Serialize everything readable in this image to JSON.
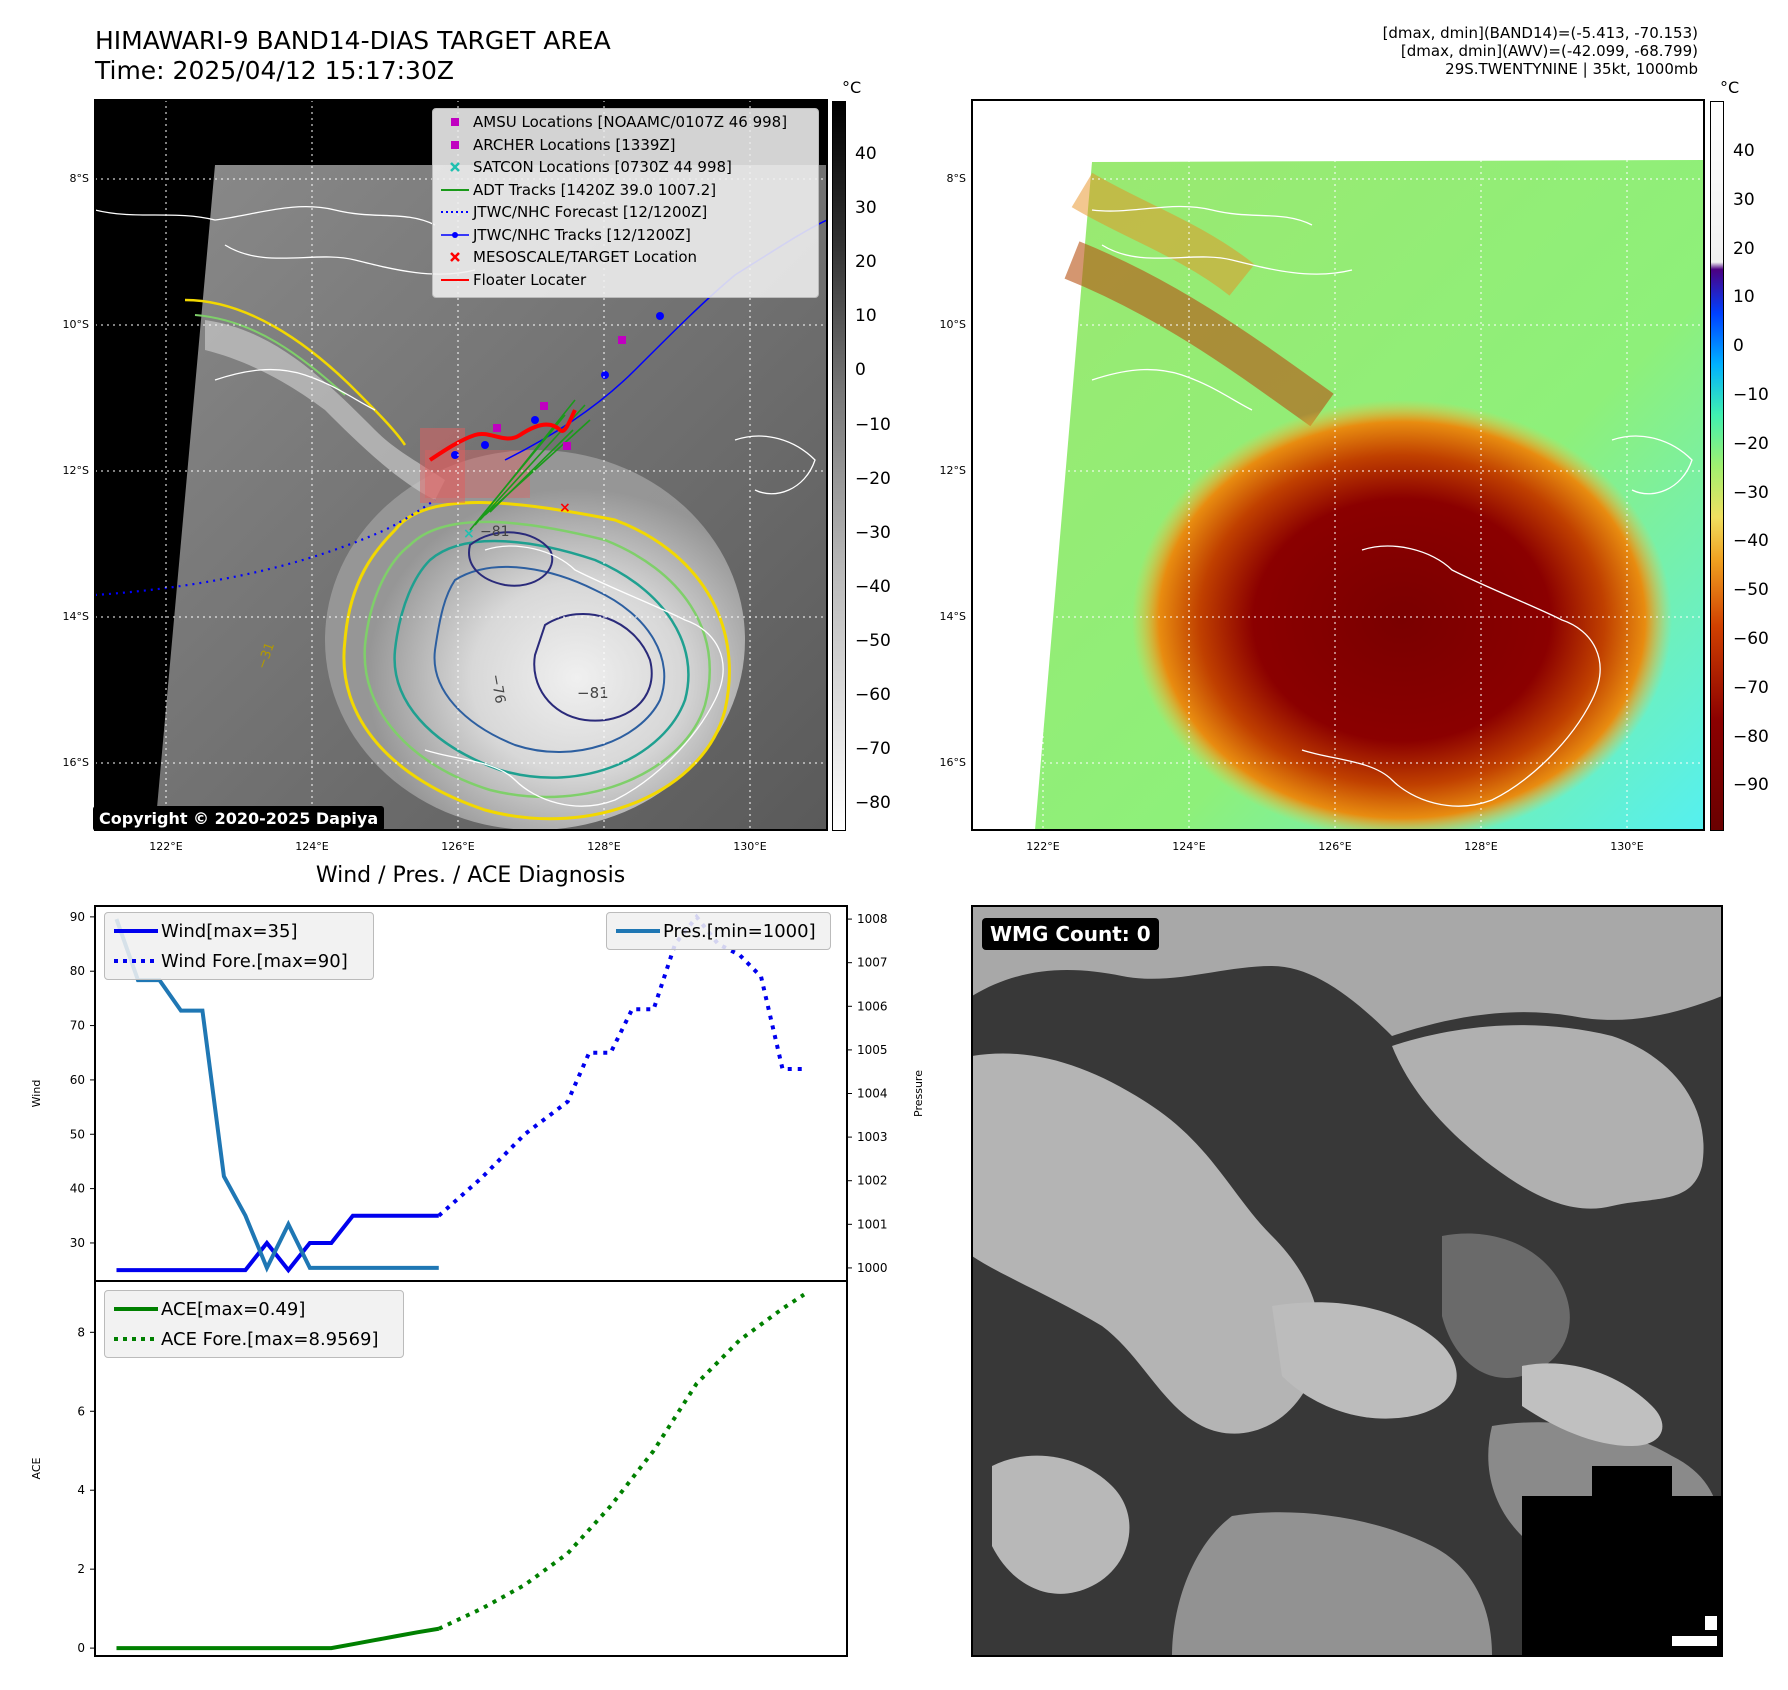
{
  "header": {
    "title_line1": "HIMAWARI-9 BAND14-DIAS TARGET AREA",
    "title_line2": "Time: 2025/04/12 15:17:30Z",
    "info_line1": "[dmax, dmin](BAND14)=(-5.413, -70.153)",
    "info_line2": "[dmax, dmin](AWV)=(-42.099, -68.799)",
    "info_line3": "29S.TWENTYNINE | 35kt, 1000mb"
  },
  "map_axes": {
    "lat_labels": [
      "8°S",
      "10°S",
      "12°S",
      "14°S",
      "16°S"
    ],
    "lon_labels": [
      "122°E",
      "124°E",
      "126°E",
      "128°E",
      "130°E"
    ]
  },
  "colorbar_left": {
    "unit": "°C",
    "ticks": [
      "40",
      "30",
      "20",
      "10",
      "0",
      "−10",
      "−20",
      "−30",
      "−40",
      "−50",
      "−60",
      "−70",
      "−80"
    ]
  },
  "colorbar_right": {
    "unit": "°C",
    "ticks": [
      "40",
      "30",
      "20",
      "10",
      "0",
      "−10",
      "−20",
      "−30",
      "−40",
      "−50",
      "−60",
      "−70",
      "−80",
      "−90"
    ]
  },
  "map_legend": [
    {
      "label": "AMSU Locations [NOAAMC/0107Z 46 998]",
      "marker": "square",
      "color": "#c000c0"
    },
    {
      "label": "ARCHER Locations [1339Z]",
      "marker": "square",
      "color": "#c000c0"
    },
    {
      "label": "SATCON Locations [0730Z 44 998]",
      "marker": "x",
      "color": "#20c0b0"
    },
    {
      "label": "ADT Tracks [1420Z 39.0 1007.2]",
      "marker": "line",
      "color": "#1a9a1a"
    },
    {
      "label": "JTWC/NHC Forecast [12/1200Z]",
      "marker": "dotted",
      "color": "#0000ff"
    },
    {
      "label": "JTWC/NHC Tracks [12/1200Z]",
      "marker": "line-dot",
      "color": "#0000ff"
    },
    {
      "label": "MESOSCALE/TARGET Location",
      "marker": "x",
      "color": "#ff0000"
    },
    {
      "label": "Floater Locater",
      "marker": "line",
      "color": "#ff0000"
    }
  ],
  "contour_labels": [
    "−81",
    "−76",
    "−81",
    "−31"
  ],
  "copyright": "Copyright © 2020-2025 Dapiya",
  "diag_title": "Wind / Pres. / ACE Diagnosis",
  "wmg_label": "WMG Count: 0",
  "chart_data": [
    {
      "type": "line",
      "name": "wind_pressure",
      "ylabel": "Wind",
      "y2label": "Pressure",
      "ylim": [
        23,
        92
      ],
      "y2lim": [
        999.7,
        1008.3
      ],
      "yticks": [
        30,
        40,
        50,
        60,
        70,
        80,
        90
      ],
      "y2ticks": [
        1000,
        1001,
        1002,
        1003,
        1004,
        1005,
        1006,
        1007,
        1008
      ],
      "xlim": [
        0,
        35
      ],
      "legend_left": [
        "Wind[max=35]",
        "Wind Fore.[max=90]"
      ],
      "legend_right": [
        "Pres.[min=1000]"
      ],
      "series": [
        {
          "name": "Wind[max=35]",
          "axis": "left",
          "style": "solid",
          "color": "#0000ee",
          "x": [
            1,
            2,
            3,
            4,
            5,
            6,
            7,
            8,
            9,
            10,
            11,
            12,
            13,
            14,
            15,
            16
          ],
          "y": [
            25,
            25,
            25,
            25,
            25,
            25,
            25,
            30,
            25,
            30,
            30,
            35,
            35,
            35,
            35,
            35
          ]
        },
        {
          "name": "Wind Fore.[max=90]",
          "axis": "left",
          "style": "dotted",
          "color": "#0000ee",
          "x": [
            16,
            18,
            20,
            22,
            23,
            24,
            25,
            26,
            27,
            28,
            29,
            30,
            31,
            32,
            33
          ],
          "y": [
            35,
            42,
            50,
            56,
            65,
            65,
            73,
            73,
            85,
            90,
            85,
            83,
            79,
            62,
            62
          ]
        },
        {
          "name": "Pres.[min=1000]",
          "axis": "right",
          "style": "solid",
          "color": "#1f77b4",
          "x": [
            1,
            2,
            3,
            4,
            5,
            6,
            7,
            8,
            9,
            10,
            11,
            12,
            13,
            14,
            15,
            16
          ],
          "y": [
            1008,
            1006.6,
            1006.6,
            1005.9,
            1005.9,
            1002.1,
            1001.2,
            1000,
            1001,
            1000,
            1000,
            1000,
            1000,
            1000,
            1000,
            1000
          ]
        }
      ]
    },
    {
      "type": "line",
      "name": "ace",
      "ylabel": "ACE",
      "ylim": [
        -0.2,
        9.3
      ],
      "yticks": [
        0,
        2,
        4,
        6,
        8
      ],
      "xlim": [
        0,
        35
      ],
      "legend": [
        "ACE[max=0.49]",
        "ACE Fore.[max=8.9569]"
      ],
      "series": [
        {
          "name": "ACE[max=0.49]",
          "style": "solid",
          "color": "#008000",
          "x": [
            1,
            2,
            3,
            4,
            5,
            6,
            7,
            8,
            9,
            10,
            11,
            12,
            13,
            14,
            15,
            16
          ],
          "y": [
            0,
            0,
            0,
            0,
            0,
            0,
            0,
            0,
            0,
            0,
            0,
            0.1,
            0.2,
            0.3,
            0.4,
            0.49
          ]
        },
        {
          "name": "ACE Fore.[max=8.9569]",
          "style": "dotted",
          "color": "#008000",
          "x": [
            16,
            18,
            20,
            22,
            24,
            26,
            28,
            30,
            32,
            33
          ],
          "y": [
            0.49,
            1.0,
            1.6,
            2.4,
            3.6,
            5.0,
            6.7,
            7.8,
            8.6,
            8.9569
          ]
        }
      ]
    }
  ]
}
